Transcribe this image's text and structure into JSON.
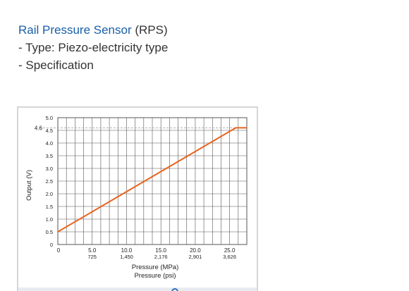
{
  "content": {
    "title_link": "Rail Pressure Sensor",
    "title_suffix": " (RPS)",
    "type_line": "- Type: Piezo-electricity type",
    "spec_line": "- Specification"
  },
  "colors": {
    "link": "#1a5fa8",
    "line": "#e8641e",
    "grid": "#555555",
    "frame_border": "#d6d6d6"
  },
  "chart_data": {
    "type": "line",
    "title": "",
    "xlabel": "Pressure (MPa)",
    "xlabel_secondary": "Pressure (psi)",
    "ylabel": "Output (V)",
    "xlim": [
      0,
      27.5
    ],
    "ylim": [
      0,
      5.0
    ],
    "x_ticks": [
      {
        "mpa": "0",
        "psi": ""
      },
      {
        "mpa": "5.0",
        "psi": "725"
      },
      {
        "mpa": "10.0",
        "psi": "1,450"
      },
      {
        "mpa": "15.0",
        "psi": "2,176"
      },
      {
        "mpa": "20.0",
        "psi": "2,901"
      },
      {
        "mpa": "25.0",
        "psi": "3,626"
      }
    ],
    "y_ticks": [
      "0",
      "0.5",
      "1.0",
      "1.5",
      "2.0",
      "2.5",
      "3.0",
      "3.5",
      "4.0",
      "4.5",
      "5.0"
    ],
    "reference_line": {
      "y": 4.6,
      "label": "4.6"
    },
    "grid": true,
    "series": [
      {
        "x": [
          0,
          25.9,
          27.5
        ],
        "y": [
          0.5,
          4.6,
          4.6
        ]
      }
    ]
  }
}
